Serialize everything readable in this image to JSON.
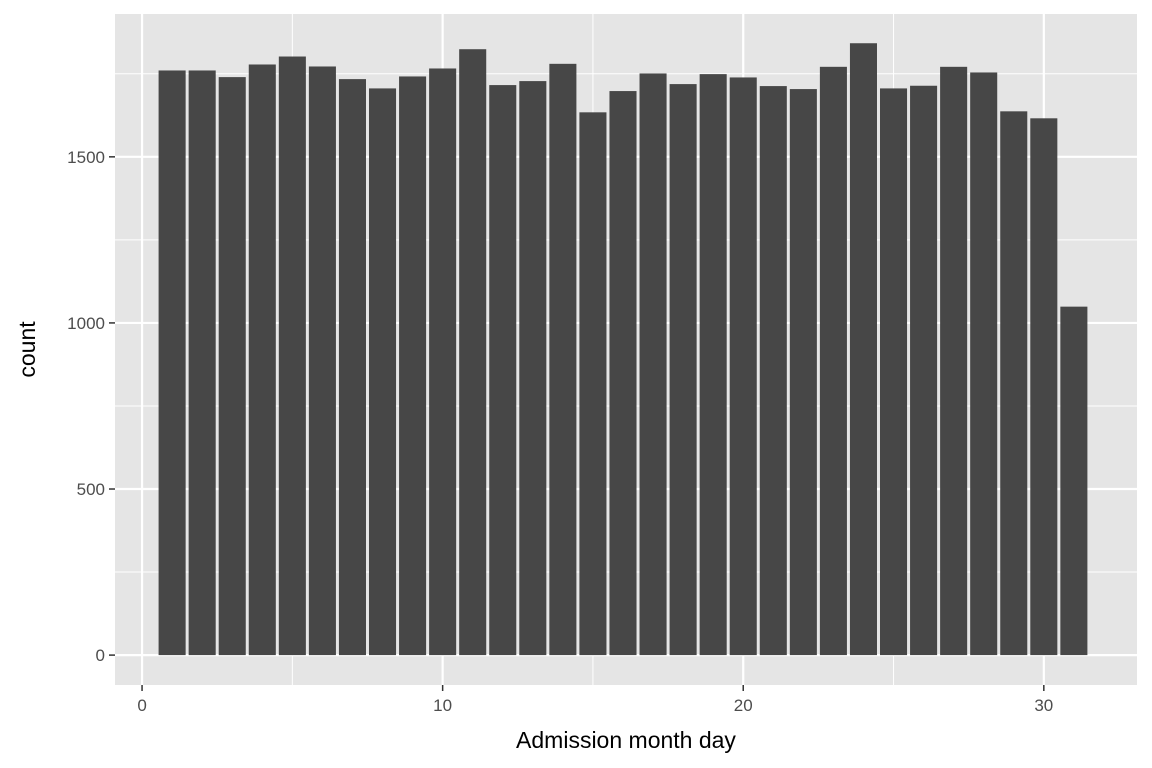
{
  "chart_data": {
    "type": "bar",
    "title": "",
    "xlabel": "Admission month day",
    "ylabel": "count",
    "x": [
      1,
      2,
      3,
      4,
      5,
      6,
      7,
      8,
      9,
      10,
      11,
      12,
      13,
      14,
      15,
      16,
      17,
      18,
      19,
      20,
      21,
      22,
      23,
      24,
      25,
      26,
      27,
      28,
      29,
      30,
      31
    ],
    "values": [
      1760,
      1760,
      1740,
      1778,
      1802,
      1772,
      1734,
      1706,
      1742,
      1766,
      1824,
      1716,
      1728,
      1780,
      1634,
      1698,
      1751,
      1719,
      1749,
      1739,
      1713,
      1704,
      1771,
      1842,
      1706,
      1714,
      1771,
      1754,
      1637,
      1616,
      1049
    ],
    "xlim": [
      -0.9,
      33.1
    ],
    "ylim": [
      -90,
      1930
    ],
    "x_ticks": [
      0,
      10,
      20,
      30
    ],
    "y_ticks": [
      0,
      500,
      1000,
      1500
    ],
    "x_minor_ticks": [
      5,
      15,
      25
    ],
    "y_minor_ticks": [
      250,
      750,
      1250,
      1750
    ],
    "grid": true,
    "legend": "none",
    "colors": {
      "panel_background": "#e5e5e5",
      "grid": "#ffffff",
      "bar_fill": "#474747",
      "tick_label": "#4d4d4d",
      "axis_title": "#000000"
    }
  }
}
